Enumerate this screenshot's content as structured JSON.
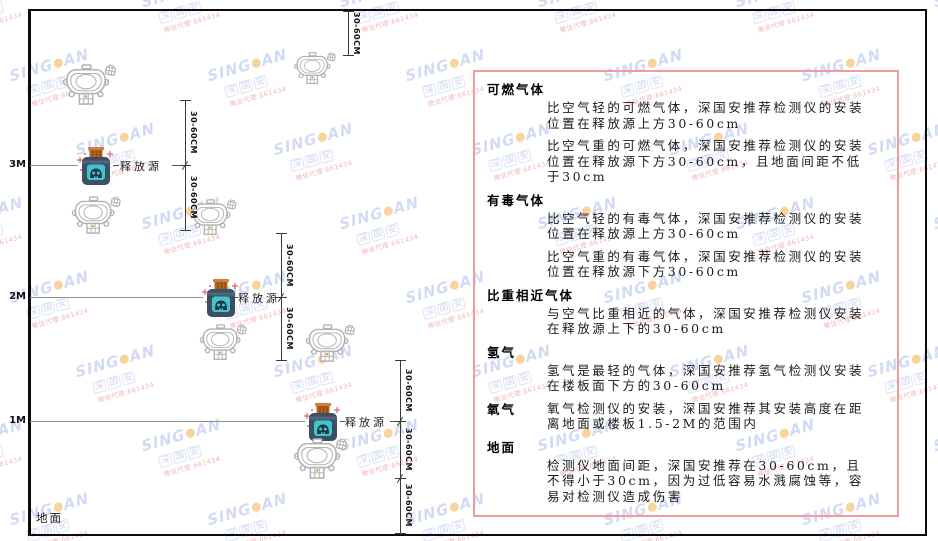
{
  "watermark": {
    "brand_left": "SING",
    "brand_right": "AN",
    "logo_dot": "orange-ball",
    "cn": "深国安",
    "sub": "微信代理:661434"
  },
  "diagram": {
    "ground_label": "地面",
    "release_source_label": "释放源",
    "dim_label": "30-60CM",
    "heights": [
      {
        "label": "3M"
      },
      {
        "label": "2M"
      },
      {
        "label": "1M"
      }
    ],
    "detector_count": 7,
    "release_source_count": 3
  },
  "panel": {
    "sections": [
      {
        "heading": "可燃气体",
        "paragraphs": [
          "比空气轻的可燃气体，深国安推荐检测仪的安装位置在释放源上方30-60cm",
          "比空气重的可燃气体，深国安推荐检测仪的安装位置在释放源下方30-60cm，且地面间距不低于30cm"
        ]
      },
      {
        "heading": "有毒气体",
        "paragraphs": [
          "比空气轻的有毒气体，深国安推荐检测仪的安装位置在释放源上方30-60cm",
          "比空气重的有毒气体，深国安推荐检测仪的安装位置在释放源下方30-60cm"
        ]
      },
      {
        "heading": "比重相近气体",
        "paragraphs": [
          "与空气比重相近的气体，深国安推荐检测仪安装在释放源上下的30-60cm"
        ]
      },
      {
        "heading": "氢气",
        "paragraphs": [
          "氢气是最轻的气体，深国安推荐氢气检测仪安装在楼板面下方的30-60cm"
        ]
      },
      {
        "heading": "氧气",
        "paragraphs": [
          "氧气检测仪的安装，深国安推荐其安装高度在距离地面或楼板1.5-2M的范围内"
        ]
      },
      {
        "heading": "地面",
        "paragraphs": [
          "检测仪地面间距，深国安推荐在30-60cm，且不得小于30cm，因为过低容易水溅腐蚀等，容易对检测仪造成伤害"
        ]
      }
    ]
  },
  "colors": {
    "panel_border": "#f09c9c",
    "source_body": "#3d4f63",
    "source_cap": "#b3651f",
    "source_face": "#41c4d0",
    "detector_gray": "#b2b2b2",
    "watermark_blue": "#a9b8ea",
    "watermark_red": "#e86a6a",
    "watermark_dot": "#f2a93c"
  }
}
